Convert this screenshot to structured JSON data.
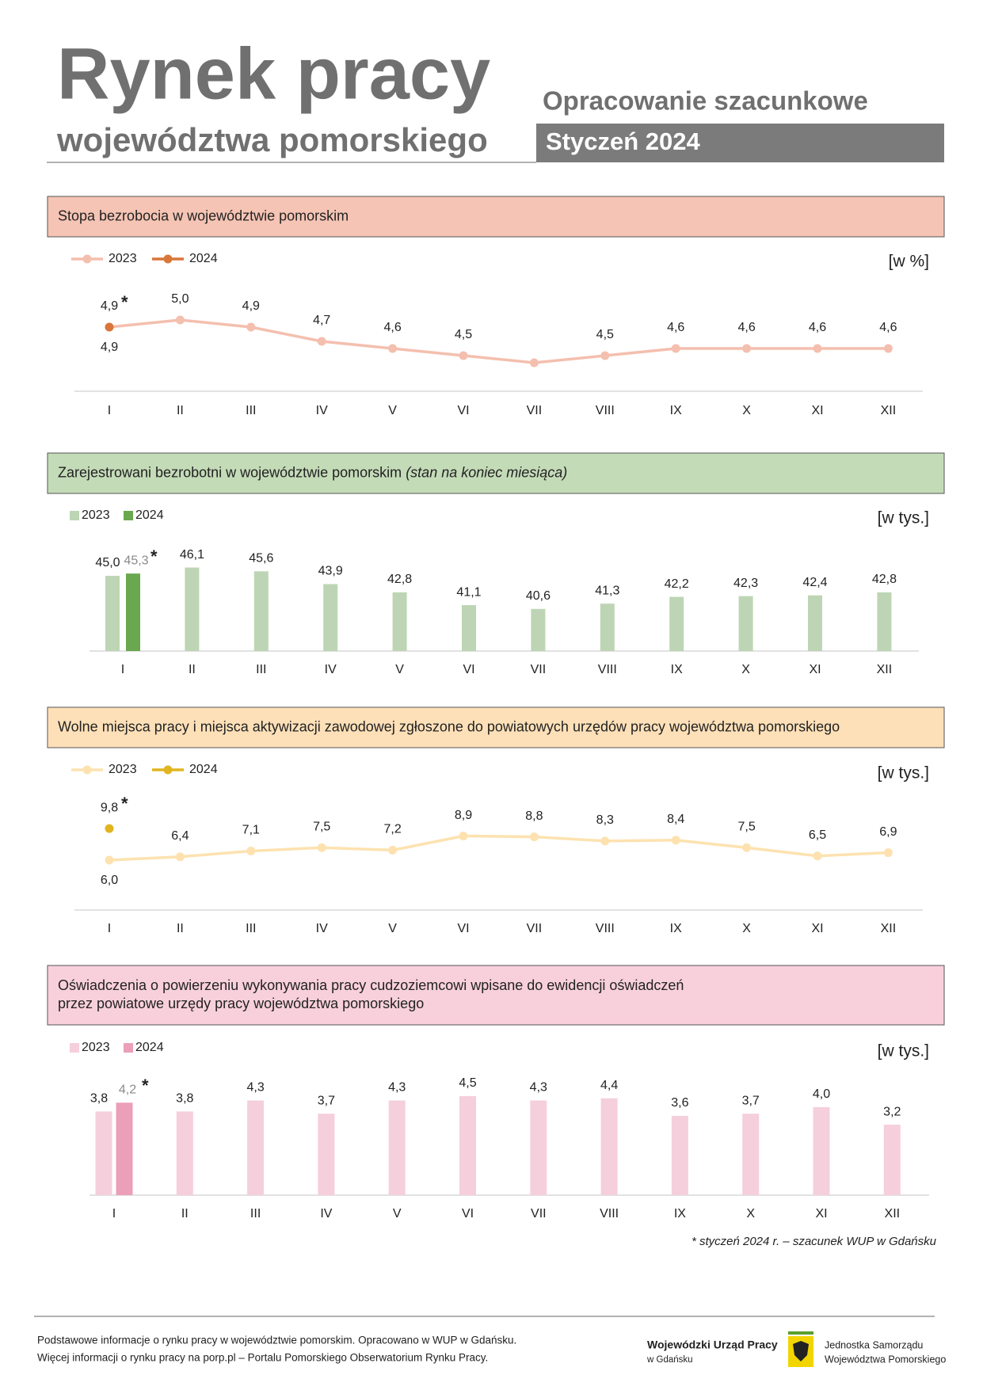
{
  "header": {
    "title": "Rynek pracy",
    "subtitle": "województwa pomorskiego",
    "tag": "Opracowanie szacunkowe",
    "period": "Styczeń 2024"
  },
  "chart_data": [
    {
      "type": "line",
      "title": [
        "Stopa bezrobocia w województwie pomorskim"
      ],
      "band_color": "#f5c4b4",
      "unit": "[w %]",
      "marker": "*",
      "categories": [
        "I",
        "II",
        "III",
        "IV",
        "V",
        "VI",
        "VII",
        "VIII",
        "IX",
        "X",
        "XI",
        "XII"
      ],
      "ylim": [
        4,
        5.5
      ],
      "series": [
        {
          "name": "2023",
          "color": "#f4bfae",
          "values": [
            4.9,
            5.0,
            4.9,
            4.7,
            4.6,
            4.5,
            4.4,
            4.5,
            4.6,
            4.6,
            4.6,
            4.6
          ],
          "value_labels": [
            "4,9",
            "5,0",
            "4,9",
            "4,7",
            "4,6",
            "4,5",
            null,
            "4,5",
            "4,6",
            "4,6",
            "4,6",
            "4,6"
          ]
        },
        {
          "name": "2024",
          "color": "#d9773a",
          "values": [
            4.9,
            null,
            null,
            null,
            null,
            null,
            null,
            null,
            null,
            null,
            null,
            null
          ],
          "value_labels": [
            "4,9",
            null,
            null,
            null,
            null,
            null,
            null,
            null,
            null,
            null,
            null,
            null
          ]
        }
      ]
    },
    {
      "type": "bar",
      "title": [
        "Zarejestrowani bezrobotni w województwie pomorskim"
      ],
      "title_note": "(stan na koniec miesiąca)",
      "band_color": "#c4dbb8",
      "unit": "[w tys.]",
      "marker": "*",
      "categories": [
        "I",
        "II",
        "III",
        "IV",
        "V",
        "VI",
        "VII",
        "VIII",
        "IX",
        "X",
        "XI",
        "XII"
      ],
      "ylim": [
        35,
        47
      ],
      "series": [
        {
          "name": "2023",
          "color": "#bdd5b4",
          "values": [
            45.0,
            46.1,
            45.6,
            43.9,
            42.8,
            41.1,
            40.6,
            41.3,
            42.2,
            42.3,
            42.4,
            42.8
          ],
          "value_labels": [
            "45,0",
            "46,1",
            "45,6",
            "43,9",
            "42,8",
            "41,1",
            "40,6",
            "41,3",
            "42,2",
            "42,3",
            "42,4",
            "42,8"
          ]
        },
        {
          "name": "2024",
          "color": "#6aa84f",
          "values": [
            45.3,
            null,
            null,
            null,
            null,
            null,
            null,
            null,
            null,
            null,
            null,
            null
          ],
          "value_labels": [
            "45,3",
            null,
            null,
            null,
            null,
            null,
            null,
            null,
            null,
            null,
            null,
            null
          ]
        }
      ]
    },
    {
      "type": "line",
      "title": [
        "Wolne miejsca pracy i miejsca aktywizacji zawodowej zgłoszone do powiatowych urzędów pracy województwa pomorskiego"
      ],
      "band_color": "#fde0b8",
      "unit": "[w tys.]",
      "marker": "*",
      "categories": [
        "I",
        "II",
        "III",
        "IV",
        "V",
        "VI",
        "VII",
        "VIII",
        "IX",
        "X",
        "XI",
        "XII"
      ],
      "ylim": [
        0,
        12
      ],
      "series": [
        {
          "name": "2023",
          "color": "#fde2b0",
          "values": [
            6.0,
            6.4,
            7.1,
            7.5,
            7.2,
            8.9,
            8.8,
            8.3,
            8.4,
            7.5,
            6.5,
            6.9
          ],
          "value_labels": [
            "6,0",
            "6,4",
            "7,1",
            "7,5",
            "7,2",
            "8,9",
            "8,8",
            "8,3",
            "8,4",
            "7,5",
            "6,5",
            "6,9"
          ]
        },
        {
          "name": "2024",
          "color": "#e0b520",
          "values": [
            9.8,
            null,
            null,
            null,
            null,
            null,
            null,
            null,
            null,
            null,
            null,
            null
          ],
          "value_labels": [
            "9,8",
            null,
            null,
            null,
            null,
            null,
            null,
            null,
            null,
            null,
            null,
            null
          ]
        }
      ]
    },
    {
      "type": "bar",
      "title": [
        "Oświadczenia o powierzeniu wykonywania pracy cudzoziemcowi wpisane do ewidencji oświadczeń",
        "przez powiatowe urzędy pracy województwa pomorskiego"
      ],
      "band_color": "#f8d0dc",
      "unit": "[w tys.]",
      "marker": "*",
      "categories": [
        "I",
        "II",
        "III",
        "IV",
        "V",
        "VI",
        "VII",
        "VIII",
        "IX",
        "X",
        "XI",
        "XII"
      ],
      "ylim": [
        0,
        5
      ],
      "series": [
        {
          "name": "2023",
          "color": "#f5cfdc",
          "values": [
            3.8,
            3.8,
            4.3,
            3.7,
            4.3,
            4.5,
            4.3,
            4.4,
            3.6,
            3.7,
            4.0,
            3.2
          ],
          "value_labels": [
            "3,8",
            "3,8",
            "4,3",
            "3,7",
            "4,3",
            "4,5",
            "4,3",
            "4,4",
            "3,6",
            "3,7",
            "4,0",
            "3,2"
          ]
        },
        {
          "name": "2024",
          "color": "#ec9fb8",
          "values": [
            4.2,
            null,
            null,
            null,
            null,
            null,
            null,
            null,
            null,
            null,
            null,
            null
          ],
          "value_labels": [
            "4,2",
            null,
            null,
            null,
            null,
            null,
            null,
            null,
            null,
            null,
            null,
            null
          ]
        }
      ]
    }
  ],
  "footnote": "* styczeń 2024 r. – szacunek WUP w Gdańsku",
  "footer": {
    "lines": [
      "Podstawowe informacje o rynku pracy w województwie pomorskim. Opracowano w WUP w Gdańsku.",
      "Więcej informacji o rynku pracy na porp.pl – Portalu Pomorskiego Obserwatorium Rynku Pracy."
    ],
    "org": "Wojewódzki Urząd Pracy",
    "org_sub": "w Gdańsku",
    "gov": [
      "Jednostka Samorządu",
      "Województwa Pomorskiego"
    ]
  }
}
